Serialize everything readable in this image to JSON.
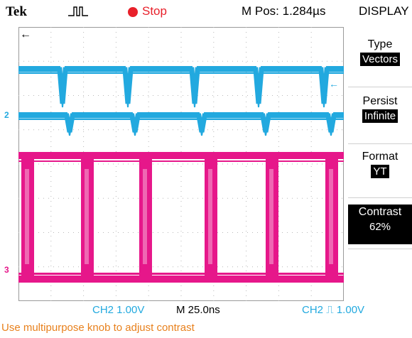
{
  "header": {
    "brand": "Tek",
    "trigger_icon": "trigger-pulse-icon",
    "run_state": "Stop",
    "m_pos": "M Pos: 1.284µs",
    "menu_title": "DISPLAY"
  },
  "side_menu": [
    {
      "label": "Type",
      "value": "Vectors",
      "active": false
    },
    {
      "label": "Persist",
      "value": "Infinite",
      "active": false
    },
    {
      "label": "Format",
      "value": "YT",
      "active": false
    },
    {
      "label": "Contrast",
      "value": "62%",
      "active": true
    }
  ],
  "markers": {
    "ch2": "2",
    "ch3": "3",
    "position": "←"
  },
  "bottom": {
    "ch2_scale": "CH2  1.00V",
    "time_scale": "M 25.0ns",
    "trigger": "CH2 ⎍ 1.00V"
  },
  "help_text": "Use multipurpose knob to adjust contrast",
  "colors": {
    "ch2": "#22a9df",
    "ch3": "#e6178a",
    "run_state": "#e8202a",
    "help": "#e8801c"
  }
}
